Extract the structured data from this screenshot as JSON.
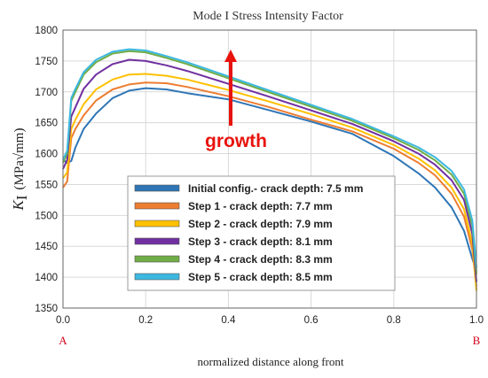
{
  "chart_data": {
    "type": "line",
    "title": "Mode I Stress Intensity Factor",
    "xlabel": "normalized distance along front",
    "ylabel_symbol": "K",
    "ylabel_subscript": "I",
    "ylabel_unit": "(MPa√mm)",
    "xlim": [
      0.0,
      1.0
    ],
    "ylim": [
      1350,
      1800
    ],
    "xticks": [
      "0.0",
      "0.2",
      "0.4",
      "0.6",
      "0.8",
      "1.0"
    ],
    "yticks": [
      "1350",
      "1400",
      "1450",
      "1500",
      "1550",
      "1600",
      "1650",
      "1700",
      "1750",
      "1800"
    ],
    "grid": true,
    "legend_position": "lower-center",
    "endpoints": {
      "start": "A",
      "end": "B"
    },
    "annotation": {
      "text": "growth",
      "arrow_color": "#e8130c"
    },
    "series": [
      {
        "name": "Initial config.- crack depth: 7.5 mm",
        "color": "#2e75b6",
        "x": [
          0.0,
          0.01,
          0.02,
          0.03,
          0.05,
          0.08,
          0.12,
          0.16,
          0.2,
          0.25,
          0.3,
          0.4,
          0.5,
          0.6,
          0.7,
          0.8,
          0.86,
          0.9,
          0.94,
          0.97,
          0.99,
          1.0
        ],
        "y": [
          1590,
          1585,
          1588,
          1610,
          1640,
          1665,
          1690,
          1702,
          1706,
          1704,
          1698,
          1688,
          1670,
          1652,
          1632,
          1596,
          1568,
          1545,
          1513,
          1475,
          1430,
          1410
        ]
      },
      {
        "name": "Step 1 - crack depth: 7.7 mm",
        "color": "#ed7d31",
        "x": [
          0.0,
          0.01,
          0.02,
          0.03,
          0.05,
          0.08,
          0.12,
          0.16,
          0.2,
          0.25,
          0.3,
          0.4,
          0.5,
          0.6,
          0.7,
          0.8,
          0.86,
          0.9,
          0.94,
          0.97,
          0.99,
          1.0
        ],
        "y": [
          1545,
          1555,
          1625,
          1640,
          1662,
          1686,
          1704,
          1712,
          1715,
          1714,
          1708,
          1693,
          1675,
          1655,
          1636,
          1608,
          1585,
          1565,
          1535,
          1498,
          1445,
          1385
        ]
      },
      {
        "name": "Step 2 - crack depth: 7.9 mm",
        "color": "#ffc000",
        "x": [
          0.0,
          0.01,
          0.02,
          0.03,
          0.05,
          0.08,
          0.12,
          0.16,
          0.2,
          0.25,
          0.3,
          0.4,
          0.5,
          0.6,
          0.7,
          0.8,
          0.86,
          0.9,
          0.94,
          0.97,
          0.99,
          1.0
        ],
        "y": [
          1560,
          1570,
          1640,
          1655,
          1680,
          1704,
          1720,
          1728,
          1729,
          1726,
          1720,
          1703,
          1684,
          1664,
          1642,
          1614,
          1592,
          1573,
          1545,
          1510,
          1455,
          1378
        ]
      },
      {
        "name": "Step 3 - crack depth: 8.1 mm",
        "color": "#7030a0",
        "x": [
          0.0,
          0.01,
          0.02,
          0.03,
          0.05,
          0.08,
          0.12,
          0.16,
          0.2,
          0.25,
          0.3,
          0.4,
          0.5,
          0.6,
          0.7,
          0.8,
          0.86,
          0.9,
          0.94,
          0.97,
          0.99,
          1.0
        ],
        "y": [
          1575,
          1590,
          1660,
          1675,
          1705,
          1728,
          1745,
          1752,
          1750,
          1743,
          1734,
          1713,
          1692,
          1670,
          1648,
          1620,
          1600,
          1582,
          1557,
          1525,
          1470,
          1392
        ]
      },
      {
        "name": "Step 4 - crack depth: 8.3 mm",
        "color": "#70ad47",
        "x": [
          0.0,
          0.01,
          0.02,
          0.03,
          0.05,
          0.08,
          0.12,
          0.16,
          0.2,
          0.25,
          0.3,
          0.4,
          0.5,
          0.6,
          0.7,
          0.8,
          0.86,
          0.9,
          0.94,
          0.97,
          0.99,
          1.0
        ],
        "y": [
          1585,
          1600,
          1685,
          1700,
          1728,
          1748,
          1762,
          1766,
          1764,
          1755,
          1745,
          1722,
          1699,
          1676,
          1653,
          1625,
          1606,
          1589,
          1566,
          1535,
          1483,
          1405
        ]
      },
      {
        "name": "Step 5 - crack depth: 8.5 mm",
        "color": "#3cb8e0",
        "x": [
          0.0,
          0.01,
          0.02,
          0.03,
          0.05,
          0.08,
          0.12,
          0.16,
          0.2,
          0.25,
          0.3,
          0.4,
          0.5,
          0.6,
          0.7,
          0.8,
          0.86,
          0.9,
          0.94,
          0.97,
          0.99,
          1.0
        ],
        "y": [
          1590,
          1605,
          1690,
          1705,
          1732,
          1752,
          1765,
          1769,
          1767,
          1758,
          1748,
          1725,
          1702,
          1679,
          1656,
          1628,
          1610,
          1594,
          1572,
          1542,
          1492,
          1415
        ]
      }
    ]
  }
}
